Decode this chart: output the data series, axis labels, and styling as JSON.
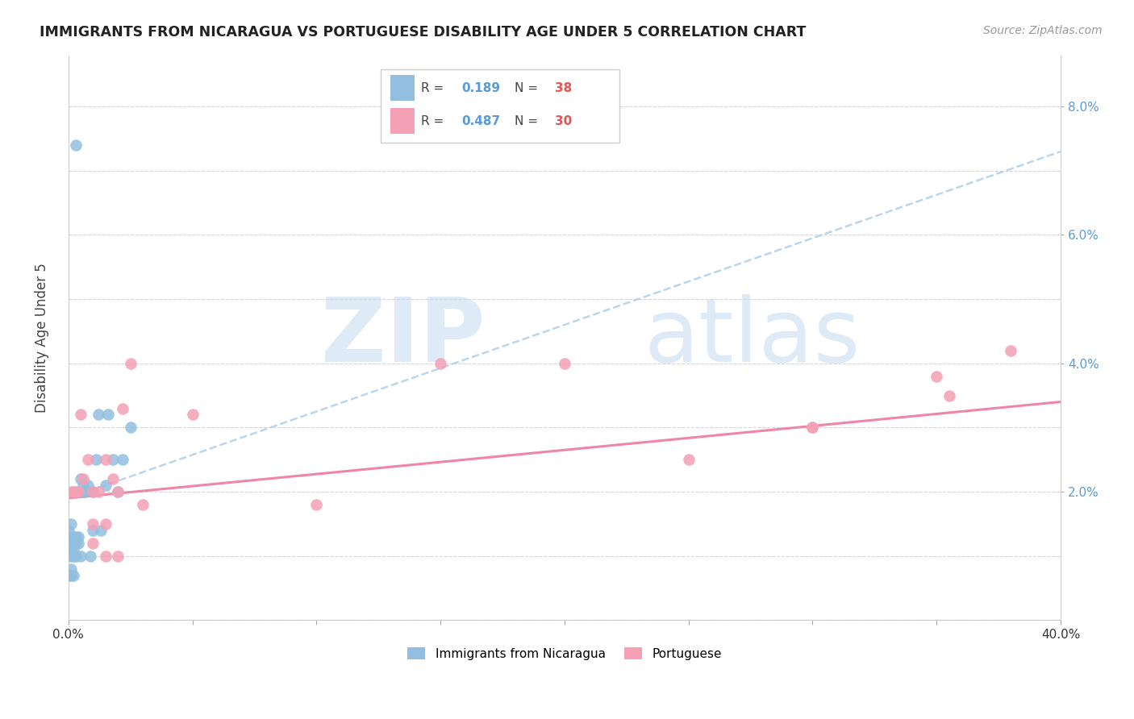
{
  "title": "IMMIGRANTS FROM NICARAGUA VS PORTUGUESE DISABILITY AGE UNDER 5 CORRELATION CHART",
  "source": "Source: ZipAtlas.com",
  "ylabel": "Disability Age Under 5",
  "xlim": [
    0.0,
    0.4
  ],
  "ylim": [
    0.0,
    0.088
  ],
  "color_nicaragua": "#92BFE0",
  "color_portuguese": "#F4A0B5",
  "color_line_nicaragua": "#AACCE8",
  "color_line_portuguese": "#F080A0",
  "nicaragua_x": [
    0.0,
    0.0,
    0.0,
    0.001,
    0.001,
    0.001,
    0.001,
    0.002,
    0.002,
    0.002,
    0.002,
    0.003,
    0.003,
    0.003,
    0.004,
    0.004,
    0.005,
    0.005,
    0.006,
    0.006,
    0.007,
    0.008,
    0.009,
    0.01,
    0.01,
    0.011,
    0.012,
    0.013,
    0.015,
    0.016,
    0.018,
    0.02,
    0.022,
    0.025,
    0.0,
    0.001,
    0.002,
    0.003
  ],
  "nicaragua_y": [
    0.014,
    0.013,
    0.012,
    0.015,
    0.011,
    0.01,
    0.008,
    0.013,
    0.012,
    0.011,
    0.01,
    0.013,
    0.012,
    0.01,
    0.013,
    0.012,
    0.022,
    0.01,
    0.021,
    0.02,
    0.02,
    0.021,
    0.01,
    0.014,
    0.02,
    0.025,
    0.032,
    0.014,
    0.021,
    0.032,
    0.025,
    0.02,
    0.025,
    0.03,
    0.007,
    0.007,
    0.007,
    0.074
  ],
  "portuguese_x": [
    0.001,
    0.002,
    0.003,
    0.004,
    0.005,
    0.006,
    0.008,
    0.01,
    0.012,
    0.015,
    0.018,
    0.02,
    0.022,
    0.025,
    0.03,
    0.01,
    0.015,
    0.1,
    0.15,
    0.2,
    0.25,
    0.3,
    0.35,
    0.38,
    0.01,
    0.015,
    0.02,
    0.3,
    0.355,
    0.05
  ],
  "portuguese_y": [
    0.02,
    0.02,
    0.02,
    0.02,
    0.032,
    0.022,
    0.025,
    0.02,
    0.02,
    0.025,
    0.022,
    0.02,
    0.033,
    0.04,
    0.018,
    0.012,
    0.015,
    0.018,
    0.04,
    0.04,
    0.025,
    0.03,
    0.038,
    0.042,
    0.015,
    0.01,
    0.01,
    0.03,
    0.035,
    0.032
  ],
  "nic_trend_x": [
    0.0,
    0.4
  ],
  "nic_trend_y": [
    0.019,
    0.073
  ],
  "por_trend_x": [
    0.0,
    0.4
  ],
  "por_trend_y": [
    0.019,
    0.034
  ]
}
